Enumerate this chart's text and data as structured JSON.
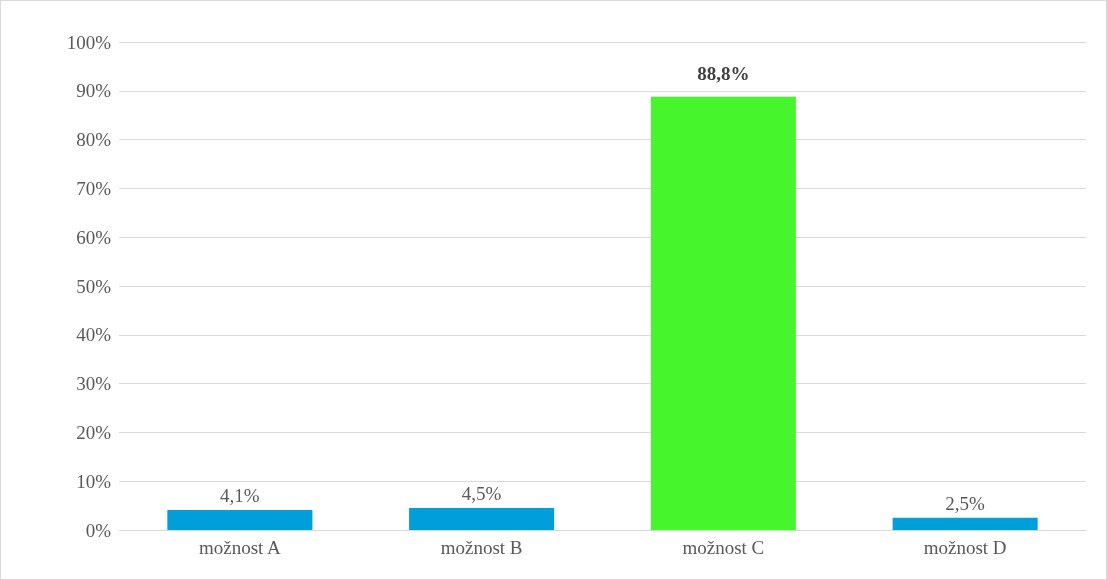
{
  "chart_data": {
    "type": "bar",
    "categories": [
      "možnost A",
      "možnost B",
      "možnost C",
      "možnost D"
    ],
    "values": [
      4.1,
      4.5,
      88.8,
      2.5
    ],
    "colors": [
      "#009fdb",
      "#009fdb",
      "#47f52c",
      "#009fdb"
    ],
    "value_labels": [
      "4,1%",
      "4,5%",
      "88,8%",
      "2,5%"
    ],
    "ylim": [
      0,
      100
    ],
    "yticks": [
      {
        "value": 0,
        "label": "0%"
      },
      {
        "value": 10,
        "label": "10%"
      },
      {
        "value": 20,
        "label": "20%"
      },
      {
        "value": 30,
        "label": "30%"
      },
      {
        "value": 40,
        "label": "40%"
      },
      {
        "value": 50,
        "label": "50%"
      },
      {
        "value": 60,
        "label": "60%"
      },
      {
        "value": 70,
        "label": "70%"
      },
      {
        "value": 80,
        "label": "80%"
      },
      {
        "value": 90,
        "label": "90%"
      },
      {
        "value": 100,
        "label": "100%"
      }
    ],
    "grid": "y"
  }
}
